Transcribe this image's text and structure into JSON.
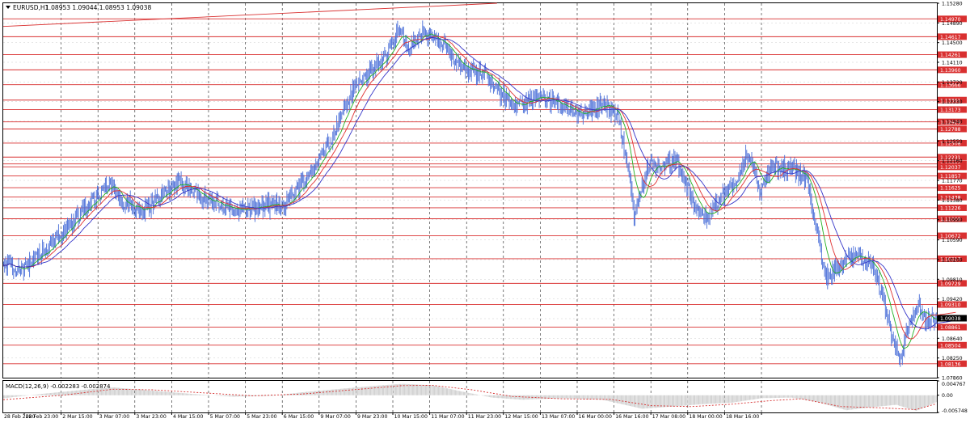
{
  "chart_data": [
    {
      "type": "line",
      "symbol": "EURUSD,H1",
      "ohlc_header": "1.08953 1.09044 1.08953 1.09038",
      "y_tick_labels": [
        "1.15280",
        "1.14890",
        "1.14500",
        "1.14110",
        "1.13720",
        "1.13330",
        "1.12940",
        "1.12550",
        "1.12160",
        "1.11770",
        "1.11380",
        "1.10990",
        "1.10590",
        "1.10200",
        "1.09810",
        "1.09420",
        "1.09030",
        "1.08640",
        "1.08250",
        "1.07860"
      ],
      "ylim": [
        1.0786,
        1.1528
      ],
      "x_tick_labels": [
        "28 Feb 2020",
        "28 Feb 23:00",
        "2 Mar 15:00",
        "3 Mar 07:00",
        "3 Mar 23:00",
        "4 Mar 15:00",
        "5 Mar 07:00",
        "5 Mar 23:00",
        "6 Mar 15:00",
        "9 Mar 07:00",
        "9 Mar 23:00",
        "10 Mar 15:00",
        "11 Mar 07:00",
        "11 Mar 23:00",
        "12 Mar 15:00",
        "13 Mar 07:00",
        "16 Mar 00:00",
        "16 Mar 16:00",
        "17 Mar 08:00",
        "18 Mar 00:00",
        "18 Mar 16:00"
      ],
      "price_key_points": [
        [
          0,
          1.1007
        ],
        [
          20,
          1.1002
        ],
        [
          45,
          1.1045
        ],
        [
          70,
          1.1098
        ],
        [
          95,
          1.115
        ],
        [
          105,
          1.1175
        ],
        [
          118,
          1.1135
        ],
        [
          140,
          1.1118
        ],
        [
          160,
          1.115
        ],
        [
          175,
          1.1175
        ],
        [
          200,
          1.1145
        ],
        [
          220,
          1.1122
        ],
        [
          240,
          1.112
        ],
        [
          260,
          1.1125
        ],
        [
          280,
          1.1128
        ],
        [
          305,
          1.1185
        ],
        [
          330,
          1.1265
        ],
        [
          345,
          1.1335
        ],
        [
          355,
          1.137
        ],
        [
          370,
          1.1395
        ],
        [
          385,
          1.143
        ],
        [
          395,
          1.1475
        ],
        [
          405,
          1.144
        ],
        [
          420,
          1.147
        ],
        [
          440,
          1.1445
        ],
        [
          455,
          1.141
        ],
        [
          470,
          1.1395
        ],
        [
          485,
          1.1385
        ],
        [
          500,
          1.1345
        ],
        [
          515,
          1.132
        ],
        [
          530,
          1.134
        ],
        [
          545,
          1.1335
        ],
        [
          560,
          1.1325
        ],
        [
          580,
          1.131
        ],
        [
          600,
          1.133
        ],
        [
          615,
          1.1305
        ],
        [
          625,
          1.122
        ],
        [
          632,
          1.1105
        ],
        [
          645,
          1.1205
        ],
        [
          660,
          1.1205
        ],
        [
          675,
          1.1215
        ],
        [
          690,
          1.114
        ],
        [
          705,
          1.11
        ],
        [
          720,
          1.1145
        ],
        [
          735,
          1.118
        ],
        [
          745,
          1.123
        ],
        [
          758,
          1.116
        ],
        [
          770,
          1.12
        ],
        [
          790,
          1.12
        ],
        [
          805,
          1.118
        ],
        [
          815,
          1.108
        ],
        [
          825,
          1.0985
        ],
        [
          840,
          1.101
        ],
        [
          855,
          1.1025
        ],
        [
          870,
          1.1015
        ],
        [
          880,
          1.0955
        ],
        [
          890,
          1.087
        ],
        [
          898,
          1.0818
        ],
        [
          908,
          1.0895
        ],
        [
          918,
          1.0925
        ],
        [
          925,
          1.0895
        ],
        [
          935,
          1.0903
        ]
      ],
      "price_line_levels": [
        "1.14970",
        "1.14617",
        "1.14261",
        "1.13960",
        "1.13666",
        "1.13361",
        "1.13173",
        "1.12929",
        "1.12788",
        "1.12508",
        "1.12231",
        "1.12096",
        "1.12037",
        "1.11857",
        "1.11625",
        "1.11438",
        "1.11226",
        "1.11009",
        "1.10672",
        "1.10217",
        "1.09729",
        "1.09310",
        "1.08861",
        "1.08504",
        "1.08136"
      ],
      "current_price": "1.09038",
      "top_trendline": [
        [
          0,
          1.1482
        ],
        [
          495,
          1.1528
        ]
      ],
      "indicator_colors": {
        "price": "#4a6fd8",
        "ma_fast": "#22b022",
        "ma_mid": "#e03030",
        "ma_slow": "#3535c8",
        "levels": "#d93030",
        "macd": "#c8c8c8",
        "signal": "#d63030",
        "grid": "#1f1f1f",
        "axis": "#000000"
      }
    },
    {
      "type": "bar",
      "label": "MACD(12,26,9) -0.002283 -0.002874",
      "y_tick_labels": [
        "0.004767",
        "0.00",
        "-0.005748"
      ],
      "ylim": [
        -0.005748,
        0.004767
      ],
      "macd_key_points": [
        [
          0,
          -0.001
        ],
        [
          40,
          0.0005
        ],
        [
          80,
          0.0018
        ],
        [
          110,
          0.0026
        ],
        [
          150,
          0.0015
        ],
        [
          190,
          0.0004
        ],
        [
          230,
          -0.0005
        ],
        [
          270,
          -0.0002
        ],
        [
          300,
          0.001
        ],
        [
          340,
          0.0022
        ],
        [
          375,
          0.0032
        ],
        [
          400,
          0.0038
        ],
        [
          430,
          0.0033
        ],
        [
          460,
          0.0012
        ],
        [
          490,
          -0.0008
        ],
        [
          520,
          -0.0015
        ],
        [
          560,
          -0.001
        ],
        [
          600,
          -0.0015
        ],
        [
          640,
          -0.0045
        ],
        [
          670,
          -0.0038
        ],
        [
          700,
          -0.003
        ],
        [
          730,
          -0.0025
        ],
        [
          760,
          -0.001
        ],
        [
          790,
          -0.0008
        ],
        [
          815,
          -0.0022
        ],
        [
          845,
          -0.005
        ],
        [
          870,
          -0.004
        ],
        [
          895,
          -0.0032
        ],
        [
          915,
          -0.0052
        ],
        [
          935,
          -0.0023
        ]
      ],
      "signal_key_points": [
        [
          0,
          -0.0015
        ],
        [
          60,
          0.0
        ],
        [
          110,
          0.002
        ],
        [
          150,
          0.0018
        ],
        [
          200,
          0.0008
        ],
        [
          250,
          -0.0002
        ],
        [
          300,
          0.0004
        ],
        [
          350,
          0.0018
        ],
        [
          400,
          0.0032
        ],
        [
          430,
          0.0033
        ],
        [
          470,
          0.0018
        ],
        [
          510,
          -0.0004
        ],
        [
          560,
          -0.0012
        ],
        [
          610,
          -0.0014
        ],
        [
          650,
          -0.0035
        ],
        [
          690,
          -0.0038
        ],
        [
          730,
          -0.003
        ],
        [
          770,
          -0.0018
        ],
        [
          800,
          -0.0012
        ],
        [
          840,
          -0.0038
        ],
        [
          880,
          -0.0042
        ],
        [
          915,
          -0.0048
        ],
        [
          935,
          -0.0029
        ]
      ]
    }
  ]
}
